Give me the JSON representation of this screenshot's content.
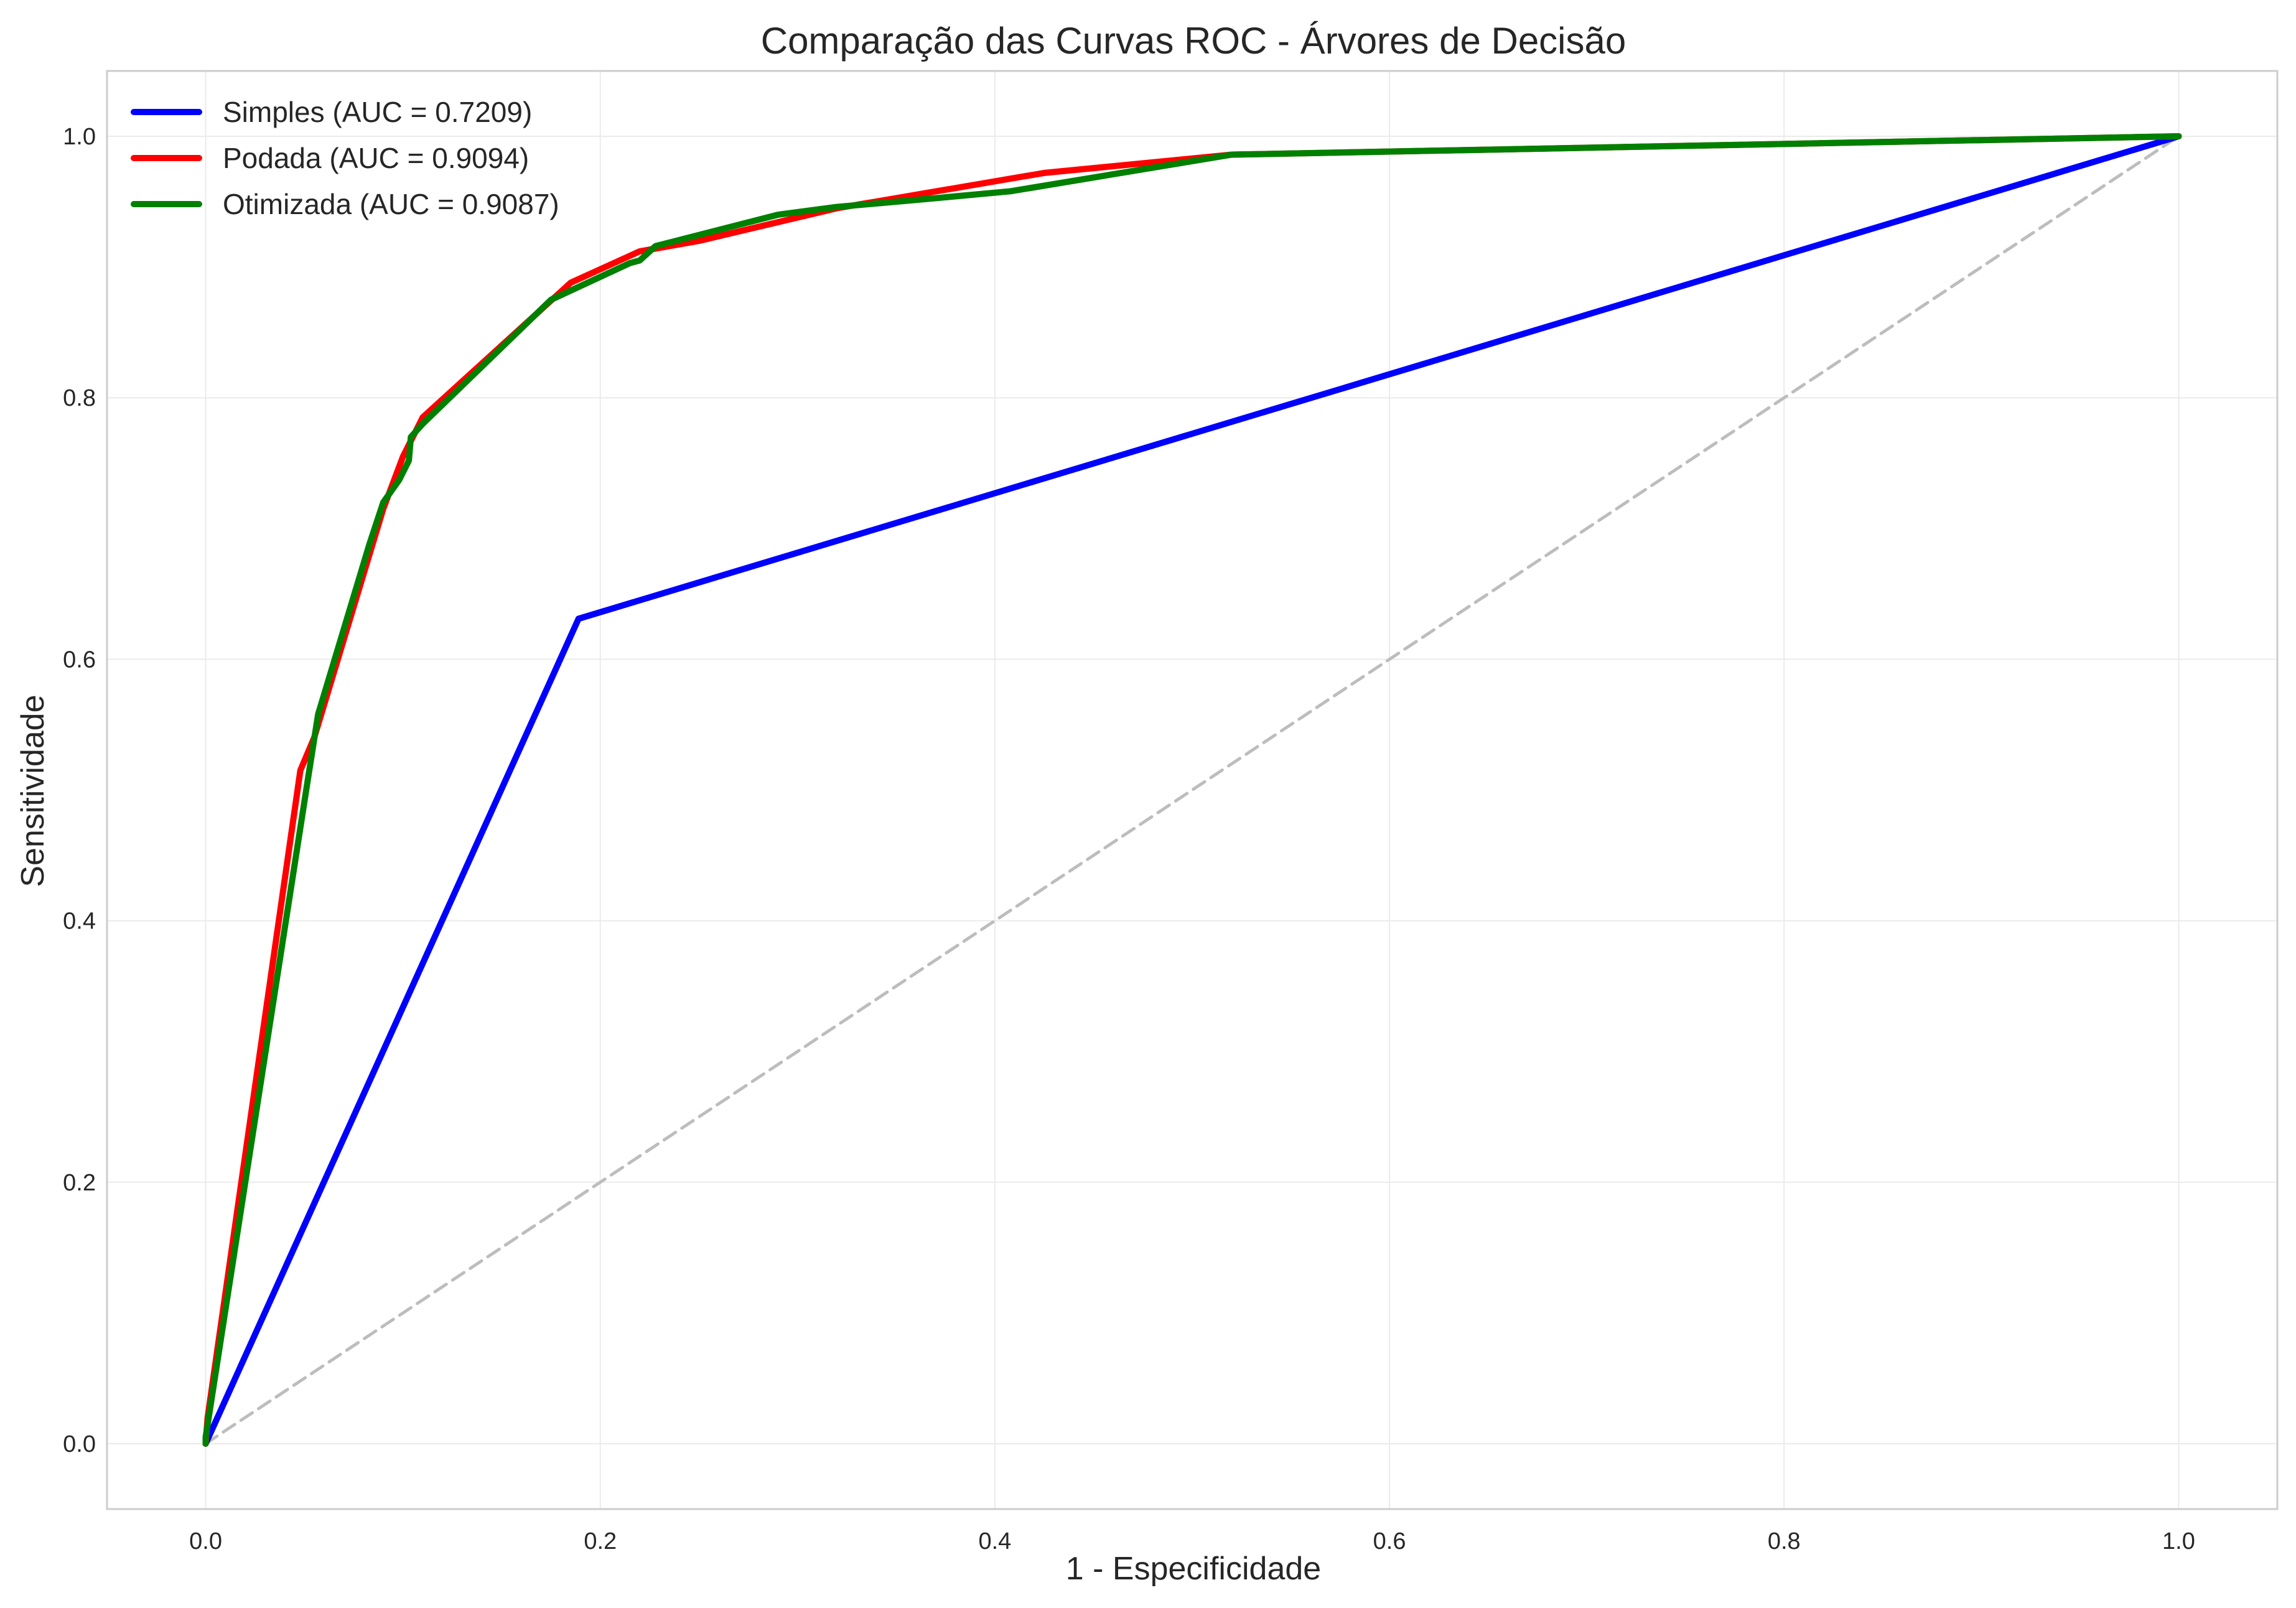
{
  "chart_data": {
    "type": "line",
    "title": "Comparação das Curvas ROC - Árvores de Decisão",
    "xlabel": "1 - Especificidade",
    "ylabel": "Sensitividade",
    "xlim": [
      -0.05,
      1.05
    ],
    "ylim": [
      -0.05,
      1.05
    ],
    "xticks": [
      0.0,
      0.2,
      0.4,
      0.6,
      0.8,
      1.0
    ],
    "yticks": [
      0.0,
      0.2,
      0.4,
      0.6,
      0.8,
      1.0
    ],
    "xtick_labels": [
      "0.0",
      "0.2",
      "0.4",
      "0.6",
      "0.8",
      "1.0"
    ],
    "ytick_labels": [
      "0.0",
      "0.2",
      "0.4",
      "0.6",
      "0.8",
      "1.0"
    ],
    "grid": true,
    "legend_position": "top-left",
    "series": [
      {
        "name": "Simples (AUC = 0.7209)",
        "color": "#0000ff",
        "x": [
          0.0,
          0.189,
          1.0
        ],
        "y": [
          0.0,
          0.631,
          1.0
        ]
      },
      {
        "name": "Podada (AUC = 0.9094)",
        "color": "#ff0000",
        "x": [
          0.0,
          0.001,
          0.048,
          0.055,
          0.09,
          0.1,
          0.11,
          0.185,
          0.22,
          0.25,
          0.32,
          0.425,
          0.52,
          1.0
        ],
        "y": [
          0.0,
          0.02,
          0.515,
          0.54,
          0.715,
          0.755,
          0.785,
          0.888,
          0.912,
          0.92,
          0.945,
          0.972,
          0.986,
          1.0
        ]
      },
      {
        "name": "Otimizada (AUC = 0.9087)",
        "color": "#008000",
        "x": [
          0.0,
          0.0,
          0.052,
          0.057,
          0.083,
          0.09,
          0.098,
          0.103,
          0.104,
          0.11,
          0.175,
          0.215,
          0.22,
          0.228,
          0.29,
          0.32,
          0.365,
          0.408,
          0.52,
          1.0
        ],
        "y": [
          0.0,
          0.005,
          0.51,
          0.558,
          0.688,
          0.72,
          0.737,
          0.752,
          0.77,
          0.78,
          0.875,
          0.903,
          0.905,
          0.916,
          0.94,
          0.946,
          0.952,
          0.958,
          0.986,
          1.0
        ]
      },
      {
        "name": "",
        "color": "#bdbdbd",
        "dashed": true,
        "x": [
          0.0,
          1.0
        ],
        "y": [
          0.0,
          1.0
        ]
      }
    ]
  }
}
